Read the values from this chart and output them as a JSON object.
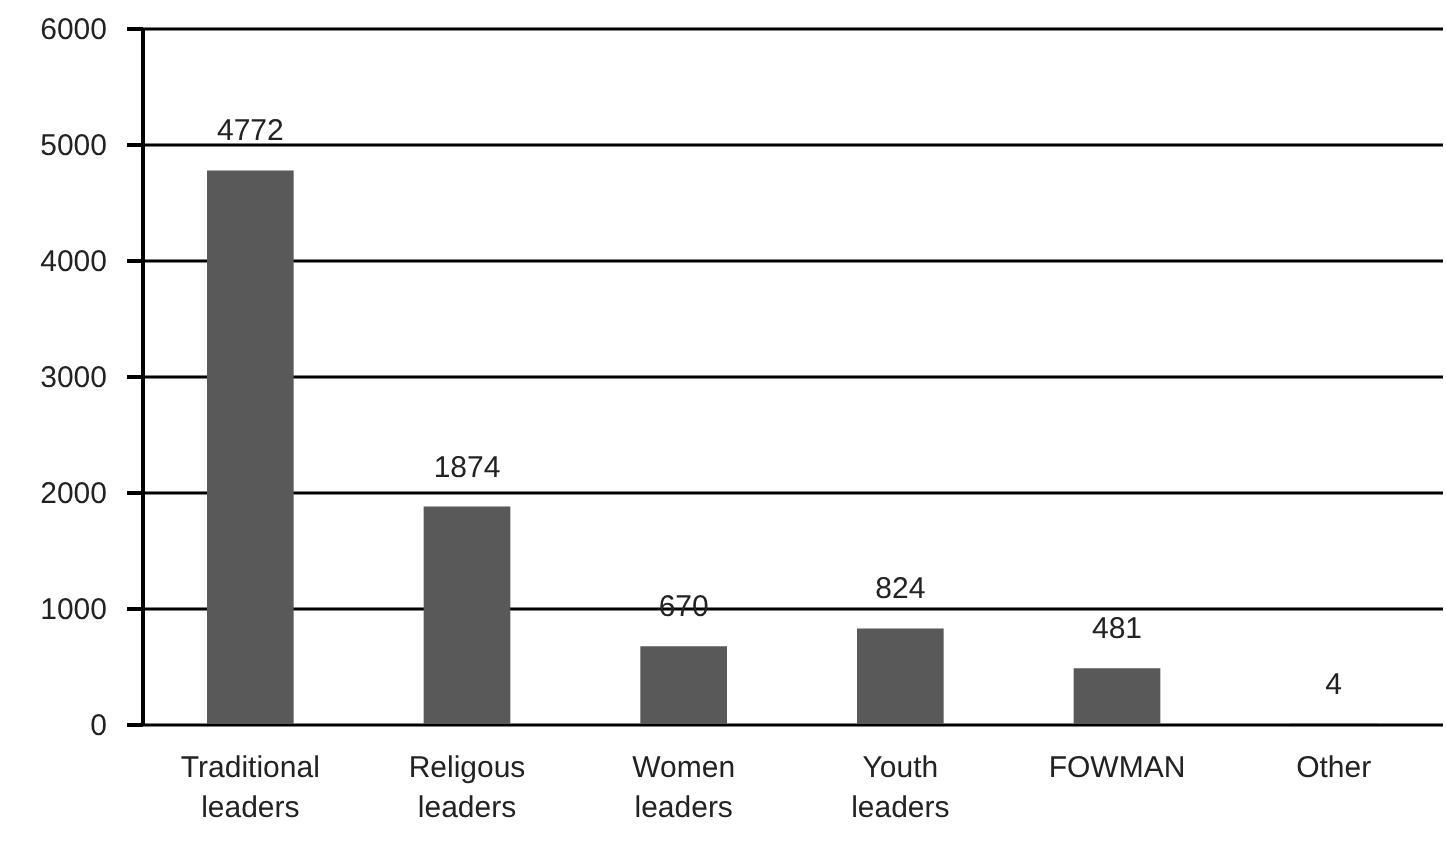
{
  "chart_data": {
    "type": "bar",
    "categories": [
      "Traditional leaders",
      "Religous leaders",
      "Women leaders",
      "Youth leaders",
      "FOWMAN",
      "Other"
    ],
    "values": [
      4772,
      1874,
      670,
      824,
      481,
      4
    ],
    "color": "#595959",
    "ylim": [
      0,
      6000
    ],
    "yticks": [
      0,
      1000,
      2000,
      3000,
      4000,
      5000,
      6000
    ],
    "grid": "y",
    "data_labels": true
  }
}
